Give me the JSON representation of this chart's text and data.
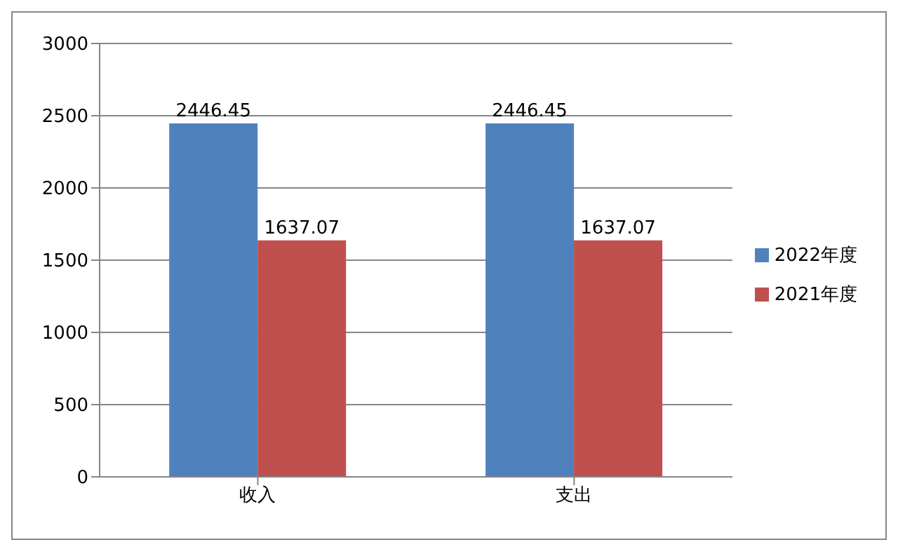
{
  "chart_data": {
    "type": "bar",
    "categories": [
      "收入",
      "支出"
    ],
    "series": [
      {
        "name": "2022年度",
        "color": "#4f81bd",
        "values": [
          2446.45,
          2446.45
        ]
      },
      {
        "name": "2021年度",
        "color": "#c0504d",
        "values": [
          1637.07,
          1637.07
        ]
      }
    ],
    "ylim": [
      0,
      3000
    ],
    "yticks": [
      0,
      500,
      1000,
      1500,
      2000,
      2500,
      3000
    ],
    "grid": "y",
    "legend": "right",
    "data_labels": true
  }
}
